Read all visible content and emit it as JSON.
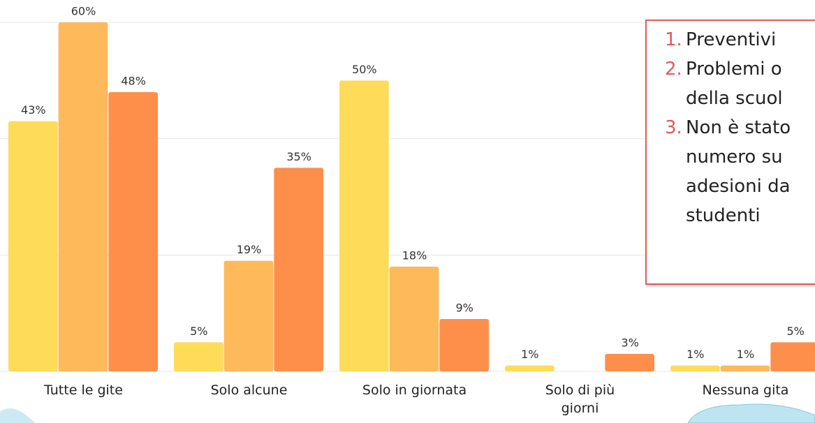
{
  "chart_data": {
    "type": "bar",
    "categories": [
      "Tutte le gite",
      "Solo alcune",
      "Solo in giornata",
      "Solo di più giorni",
      "Nessuna gita"
    ],
    "series": [
      {
        "color": "#fedb59",
        "values": [
          43,
          5,
          50,
          1,
          1
        ],
        "value_labels": [
          "43%",
          "5%",
          "50%",
          "1%",
          "1%"
        ]
      },
      {
        "color": "#fdb95a",
        "values": [
          60,
          19,
          18,
          null,
          1
        ],
        "value_labels": [
          "60%",
          "19%",
          "18%",
          null,
          "1%"
        ]
      },
      {
        "color": "#fd8f4b",
        "values": [
          48,
          35,
          9,
          3,
          5
        ],
        "value_labels": [
          "48%",
          "35%",
          "9%",
          "3%",
          "5%"
        ]
      }
    ],
    "ylim": [
      0,
      60
    ],
    "yticks": [
      0,
      20,
      40,
      60
    ],
    "grid": true,
    "notes": [
      {
        "marker": "1.",
        "lines": [
          "Preventivi"
        ]
      },
      {
        "marker": "2.",
        "lines": [
          "Problemi o",
          "della scuol"
        ]
      },
      {
        "marker": "3.",
        "lines": [
          "Non è stato",
          "numero su",
          "adesioni da",
          "studenti"
        ]
      }
    ]
  }
}
